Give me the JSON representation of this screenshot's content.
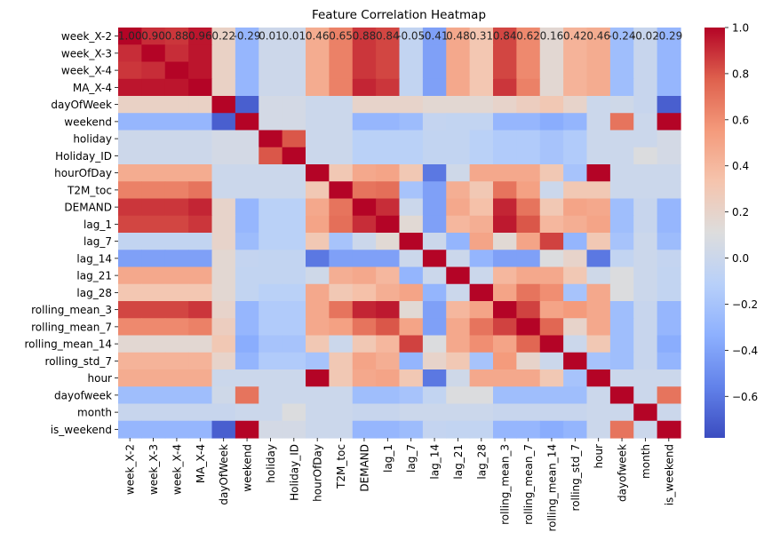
{
  "chart_data": {
    "type": "heatmap",
    "title": "Feature Correlation Heatmap",
    "colormap": "coolwarm",
    "color_range": [
      -0.78,
      1.0
    ],
    "colorbar_ticks": [
      -0.6,
      -0.4,
      -0.2,
      0.0,
      0.2,
      0.4,
      0.6,
      0.8,
      1.0
    ],
    "colorbar_tick_labels": [
      "−0.6",
      "−0.4",
      "−0.2",
      "0.0",
      "0.2",
      "0.4",
      "0.6",
      "0.8",
      "1.0"
    ],
    "x_labels": [
      "week_X-2",
      "week_X-3",
      "week_X-4",
      "MA_X-4",
      "dayOfWeek",
      "weekend",
      "holiday",
      "Holiday_ID",
      "hourOfDay",
      "T2M_toc",
      "DEMAND",
      "lag_1",
      "lag_7",
      "lag_14",
      "lag_21",
      "lag_28",
      "rolling_mean_3",
      "rolling_mean_7",
      "rolling_mean_14",
      "rolling_std_7",
      "hour",
      "dayofweek",
      "month",
      "is_weekend"
    ],
    "y_labels": [
      "week_X-2",
      "week_X-3",
      "week_X-4",
      "MA_X-4",
      "dayOfWeek",
      "weekend",
      "holiday",
      "Holiday_ID",
      "hourOfDay",
      "T2M_toc",
      "DEMAND",
      "lag_1",
      "lag_7",
      "lag_14",
      "lag_21",
      "lag_28",
      "rolling_mean_3",
      "rolling_mean_7",
      "rolling_mean_14",
      "rolling_std_7",
      "hour",
      "dayofweek",
      "month",
      "is_weekend"
    ],
    "annotations_row": 0,
    "annotation_labels": [
      "1.00",
      "0.90",
      "0.88",
      "0.96",
      "0.22",
      "-0.29",
      "0.01",
      "0.01",
      "0.46",
      "0.65",
      "0.88",
      "0.84",
      "-0.05",
      "-0.41",
      "0.48",
      "0.31",
      "0.84",
      "0.62",
      "0.16",
      "0.42",
      "0.46",
      "-0.24",
      "-0.02",
      "-0.29"
    ],
    "values": [
      [
        1.0,
        0.9,
        0.88,
        0.96,
        0.22,
        -0.29,
        0.01,
        0.01,
        0.46,
        0.65,
        0.88,
        0.84,
        -0.05,
        -0.41,
        0.48,
        0.31,
        0.84,
        0.62,
        0.16,
        0.42,
        0.46,
        -0.24,
        -0.02,
        -0.29
      ],
      [
        0.9,
        1.0,
        0.9,
        0.96,
        0.22,
        -0.29,
        0.01,
        0.01,
        0.46,
        0.65,
        0.88,
        0.84,
        -0.05,
        -0.41,
        0.48,
        0.31,
        0.84,
        0.62,
        0.16,
        0.42,
        0.46,
        -0.24,
        -0.02,
        -0.29
      ],
      [
        0.88,
        0.9,
        1.0,
        0.96,
        0.22,
        -0.29,
        0.01,
        0.01,
        0.46,
        0.65,
        0.88,
        0.84,
        -0.05,
        -0.41,
        0.48,
        0.31,
        0.84,
        0.62,
        0.16,
        0.42,
        0.46,
        -0.24,
        -0.02,
        -0.29
      ],
      [
        0.96,
        0.96,
        0.96,
        1.0,
        0.22,
        -0.29,
        0.01,
        0.01,
        0.46,
        0.65,
        0.92,
        0.88,
        -0.05,
        -0.41,
        0.48,
        0.31,
        0.88,
        0.65,
        0.16,
        0.42,
        0.46,
        -0.24,
        -0.02,
        -0.29
      ],
      [
        0.22,
        0.22,
        0.22,
        0.22,
        1.0,
        -0.7,
        0.05,
        0.05,
        0.0,
        0.0,
        0.2,
        0.2,
        0.2,
        0.16,
        0.16,
        0.16,
        0.2,
        0.25,
        0.3,
        0.2,
        0.0,
        0.02,
        -0.02,
        -0.7
      ],
      [
        -0.29,
        -0.29,
        -0.29,
        -0.29,
        -0.7,
        1.0,
        0.05,
        0.05,
        0.0,
        0.0,
        -0.29,
        -0.29,
        -0.25,
        -0.04,
        -0.05,
        -0.05,
        -0.29,
        -0.29,
        -0.35,
        -0.3,
        0.0,
        0.7,
        0.0,
        1.0
      ],
      [
        0.01,
        0.01,
        0.01,
        0.01,
        0.05,
        0.05,
        1.0,
        0.8,
        0.0,
        0.0,
        -0.1,
        -0.1,
        -0.1,
        -0.05,
        -0.05,
        -0.1,
        -0.15,
        -0.15,
        -0.2,
        -0.15,
        0.0,
        0.0,
        0.0,
        0.05
      ],
      [
        0.01,
        0.01,
        0.01,
        0.01,
        0.05,
        0.05,
        0.8,
        1.0,
        0.0,
        0.0,
        -0.1,
        -0.1,
        -0.1,
        -0.05,
        -0.05,
        -0.1,
        -0.15,
        -0.15,
        -0.2,
        -0.15,
        0.0,
        0.0,
        0.1,
        0.05
      ],
      [
        0.46,
        0.46,
        0.46,
        0.46,
        0.0,
        0.0,
        0.0,
        0.0,
        1.0,
        0.3,
        0.48,
        0.5,
        0.3,
        -0.6,
        0.02,
        0.48,
        0.48,
        0.48,
        0.3,
        -0.2,
        1.0,
        0.0,
        0.0,
        0.0
      ],
      [
        0.65,
        0.65,
        0.65,
        0.7,
        0.0,
        0.0,
        0.0,
        0.0,
        0.3,
        1.0,
        0.7,
        0.72,
        -0.2,
        -0.41,
        0.45,
        0.3,
        0.7,
        0.52,
        0.0,
        0.3,
        0.3,
        0.0,
        0.0,
        0.0
      ],
      [
        0.88,
        0.88,
        0.88,
        0.92,
        0.2,
        -0.29,
        -0.1,
        -0.1,
        0.48,
        0.7,
        1.0,
        0.9,
        0.0,
        -0.41,
        0.48,
        0.35,
        0.92,
        0.7,
        0.3,
        0.5,
        0.48,
        -0.24,
        -0.02,
        -0.29
      ],
      [
        0.84,
        0.84,
        0.84,
        0.88,
        0.2,
        -0.29,
        -0.1,
        -0.1,
        0.5,
        0.72,
        0.9,
        1.0,
        0.15,
        -0.41,
        0.4,
        0.45,
        0.95,
        0.8,
        0.4,
        0.45,
        0.5,
        -0.24,
        -0.02,
        -0.29
      ],
      [
        -0.05,
        -0.05,
        -0.05,
        -0.05,
        0.2,
        -0.25,
        -0.1,
        -0.1,
        0.3,
        -0.2,
        0.0,
        0.15,
        1.0,
        0.0,
        -0.3,
        0.5,
        0.15,
        0.5,
        0.85,
        -0.3,
        0.3,
        -0.2,
        0.0,
        -0.25
      ],
      [
        -0.41,
        -0.41,
        -0.41,
        -0.41,
        0.16,
        -0.04,
        -0.05,
        -0.05,
        -0.6,
        -0.41,
        -0.41,
        -0.41,
        0.0,
        1.0,
        0.0,
        -0.3,
        -0.41,
        -0.41,
        0.1,
        0.2,
        -0.6,
        -0.05,
        0.0,
        -0.04
      ],
      [
        0.48,
        0.48,
        0.48,
        0.48,
        0.16,
        -0.05,
        -0.05,
        -0.05,
        0.02,
        0.45,
        0.48,
        0.4,
        -0.3,
        0.0,
        1.0,
        0.0,
        0.4,
        0.48,
        0.48,
        0.3,
        0.02,
        0.1,
        0.0,
        -0.05
      ],
      [
        0.31,
        0.31,
        0.31,
        0.31,
        0.16,
        -0.05,
        -0.1,
        -0.1,
        0.48,
        0.3,
        0.35,
        0.45,
        0.5,
        -0.3,
        0.0,
        1.0,
        0.5,
        0.7,
        0.6,
        -0.2,
        0.48,
        0.1,
        0.0,
        -0.05
      ],
      [
        0.84,
        0.84,
        0.84,
        0.88,
        0.2,
        -0.29,
        -0.15,
        -0.15,
        0.48,
        0.7,
        0.92,
        0.95,
        0.15,
        -0.41,
        0.4,
        0.5,
        1.0,
        0.85,
        0.5,
        0.55,
        0.48,
        -0.24,
        -0.02,
        -0.29
      ],
      [
        0.62,
        0.62,
        0.62,
        0.65,
        0.25,
        -0.29,
        -0.15,
        -0.15,
        0.48,
        0.52,
        0.7,
        0.8,
        0.5,
        -0.41,
        0.48,
        0.7,
        0.85,
        1.0,
        0.75,
        0.2,
        0.48,
        -0.24,
        -0.02,
        -0.29
      ],
      [
        0.16,
        0.16,
        0.16,
        0.16,
        0.3,
        -0.35,
        -0.2,
        -0.2,
        0.3,
        0.0,
        0.3,
        0.4,
        0.85,
        0.1,
        0.48,
        0.6,
        0.5,
        0.75,
        1.0,
        0.0,
        0.3,
        -0.24,
        -0.02,
        -0.35
      ],
      [
        0.42,
        0.42,
        0.42,
        0.42,
        0.2,
        -0.3,
        -0.15,
        -0.15,
        -0.2,
        0.3,
        0.5,
        0.45,
        -0.3,
        0.2,
        0.3,
        -0.2,
        0.55,
        0.2,
        0.0,
        1.0,
        -0.2,
        -0.24,
        -0.02,
        -0.3
      ],
      [
        0.46,
        0.46,
        0.46,
        0.46,
        0.0,
        0.0,
        0.0,
        0.0,
        1.0,
        0.3,
        0.48,
        0.5,
        0.3,
        -0.6,
        0.02,
        0.48,
        0.48,
        0.48,
        0.3,
        -0.2,
        1.0,
        0.0,
        0.0,
        0.0
      ],
      [
        -0.24,
        -0.24,
        -0.24,
        -0.24,
        0.02,
        0.7,
        0.0,
        0.0,
        0.0,
        0.0,
        -0.24,
        -0.24,
        -0.2,
        -0.05,
        0.1,
        0.1,
        -0.24,
        -0.24,
        -0.24,
        -0.24,
        0.0,
        1.0,
        0.0,
        0.7
      ],
      [
        -0.02,
        -0.02,
        -0.02,
        -0.02,
        -0.02,
        0.0,
        0.0,
        0.1,
        0.0,
        0.0,
        -0.02,
        -0.02,
        0.0,
        0.0,
        0.0,
        0.0,
        -0.02,
        -0.02,
        -0.02,
        -0.02,
        0.0,
        0.0,
        1.0,
        0.0
      ],
      [
        -0.29,
        -0.29,
        -0.29,
        -0.29,
        -0.7,
        1.0,
        0.05,
        0.05,
        0.0,
        0.0,
        -0.29,
        -0.29,
        -0.25,
        -0.04,
        -0.05,
        -0.05,
        -0.29,
        -0.29,
        -0.35,
        -0.3,
        0.0,
        0.7,
        0.0,
        1.0
      ]
    ]
  }
}
